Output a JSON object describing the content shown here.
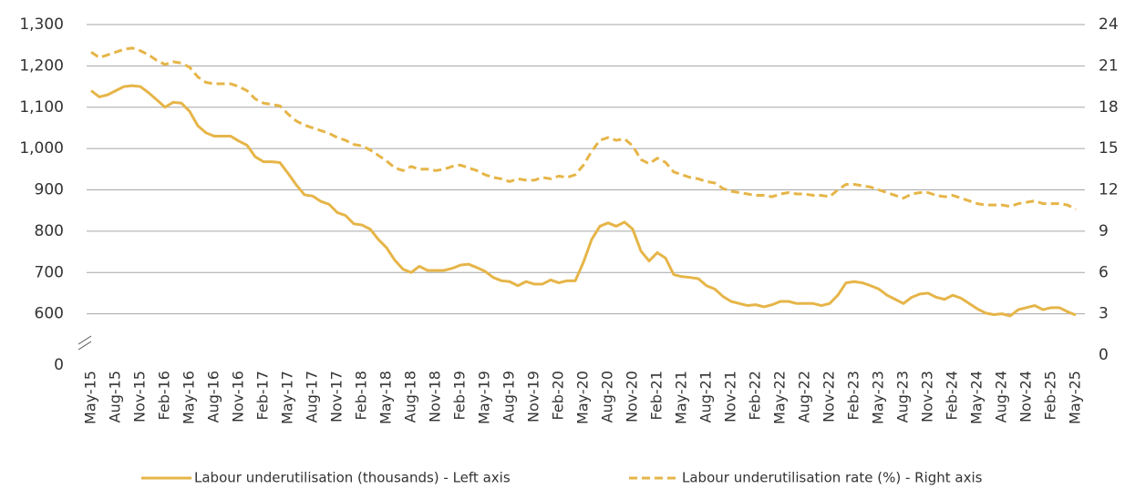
{
  "chart_data": {
    "type": "line",
    "axis_break_label": "0",
    "categories": [
      "May-15",
      null,
      null,
      "Aug-15",
      null,
      null,
      "Nov-15",
      null,
      null,
      "Feb-16",
      null,
      null,
      "May-16",
      null,
      null,
      "Aug-16",
      null,
      null,
      "Nov-16",
      null,
      null,
      "Feb-17",
      null,
      null,
      "May-17",
      null,
      null,
      "Aug-17",
      null,
      null,
      "Nov-17",
      null,
      null,
      "Feb-18",
      null,
      null,
      "May-18",
      null,
      null,
      "Aug-18",
      null,
      null,
      "Nov-18",
      null,
      null,
      "Feb-19",
      null,
      null,
      "May-19",
      null,
      null,
      "Aug-19",
      null,
      null,
      "Nov-19",
      null,
      null,
      "Feb-20",
      null,
      null,
      "May-20",
      null,
      null,
      "Aug-20",
      null,
      null,
      "Nov-20",
      null,
      null,
      "Feb-21",
      null,
      null,
      "May-21",
      null,
      null,
      "Aug-21",
      null,
      null,
      "Nov-21",
      null,
      null,
      "Feb-22",
      null,
      null,
      "May-22",
      null,
      null,
      "Aug-22",
      null,
      null,
      "Nov-22",
      null,
      null,
      "Feb-23",
      null,
      null,
      "May-23",
      null,
      null,
      "Aug-23",
      null,
      null,
      "Nov-23",
      null,
      null,
      "Feb-24",
      null,
      null,
      "May-24",
      null,
      null,
      "Aug-24",
      null,
      null,
      "Nov-24",
      null,
      null,
      "Feb-25",
      null,
      null,
      "May-25"
    ],
    "series": [
      {
        "name": "Labour underutilisation (thousands) - Left axis",
        "color": "#e6b548",
        "dash": false,
        "values": [
          1140,
          1125,
          1130,
          1140,
          1150,
          1152,
          1150,
          1135,
          1118,
          1100,
          1112,
          1110,
          1090,
          1055,
          1038,
          1030,
          1030,
          1030,
          1018,
          1008,
          980,
          968,
          968,
          966,
          940,
          912,
          888,
          885,
          872,
          865,
          845,
          838,
          818,
          815,
          805,
          780,
          760,
          730,
          708,
          700,
          715,
          705,
          705,
          705,
          710,
          718,
          720,
          712,
          703,
          688,
          680,
          678,
          668,
          678,
          672,
          672,
          682,
          675,
          680,
          680,
          725,
          780,
          812,
          820,
          812,
          822,
          805,
          752,
          728,
          748,
          735,
          695,
          690,
          688,
          685,
          668,
          660,
          642,
          630,
          625,
          620,
          622,
          617,
          622,
          630,
          630,
          625,
          625,
          625,
          620,
          625,
          645,
          675,
          678,
          675,
          668,
          660,
          645,
          635,
          625,
          640,
          648,
          650,
          640,
          635,
          645,
          638,
          625,
          612,
          602,
          598,
          600,
          595,
          610,
          615,
          620,
          610,
          615,
          615,
          605,
          597
        ]
      },
      {
        "name": "Labour underutilisation rate (%) - Right axis",
        "color": "#e6b548",
        "dash": true,
        "axis": "y2",
        "values": [
          22.0,
          21.6,
          21.8,
          22.0,
          22.2,
          22.3,
          22.1,
          21.8,
          21.4,
          21.1,
          21.3,
          21.2,
          20.9,
          20.2,
          19.8,
          19.7,
          19.7,
          19.7,
          19.5,
          19.2,
          18.6,
          18.3,
          18.2,
          18.1,
          17.5,
          17.0,
          16.7,
          16.5,
          16.3,
          16.1,
          15.8,
          15.6,
          15.3,
          15.2,
          14.9,
          14.5,
          14.1,
          13.6,
          13.4,
          13.7,
          13.5,
          13.5,
          13.4,
          13.5,
          13.7,
          13.8,
          13.6,
          13.4,
          13.1,
          12.9,
          12.8,
          12.6,
          12.8,
          12.7,
          12.7,
          12.9,
          12.8,
          13.0,
          12.9,
          13.1,
          13.8,
          14.8,
          15.6,
          15.8,
          15.6,
          15.7,
          15.2,
          14.2,
          13.9,
          14.3,
          14.0,
          13.3,
          13.1,
          12.9,
          12.8,
          12.6,
          12.5,
          12.1,
          11.9,
          11.8,
          11.7,
          11.6,
          11.6,
          11.5,
          11.7,
          11.8,
          11.7,
          11.7,
          11.6,
          11.6,
          11.5,
          12.0,
          12.4,
          12.4,
          12.3,
          12.2,
          12.0,
          11.8,
          11.6,
          11.4,
          11.7,
          11.8,
          11.8,
          11.6,
          11.5,
          11.6,
          11.4,
          11.2,
          11.0,
          10.9,
          10.9,
          10.9,
          10.8,
          11.0,
          11.1,
          11.2,
          11.0,
          11.0,
          11.0,
          10.9,
          10.6
        ]
      }
    ],
    "ylim": [
      500,
      1300
    ],
    "yticks": [
      {
        "value": 600,
        "label": "600"
      },
      {
        "value": 700,
        "label": "700"
      },
      {
        "value": 800,
        "label": "800"
      },
      {
        "value": 900,
        "label": "900"
      },
      {
        "value": 1000,
        "label": "1,000"
      },
      {
        "value": 1100,
        "label": "1,100"
      },
      {
        "value": 1200,
        "label": "1,200"
      },
      {
        "value": 1300,
        "label": "1,300"
      }
    ],
    "y2lim": [
      0,
      24
    ],
    "y2ticks": [
      0,
      3,
      6,
      9,
      12,
      15,
      18,
      21,
      24
    ],
    "grid": true
  }
}
